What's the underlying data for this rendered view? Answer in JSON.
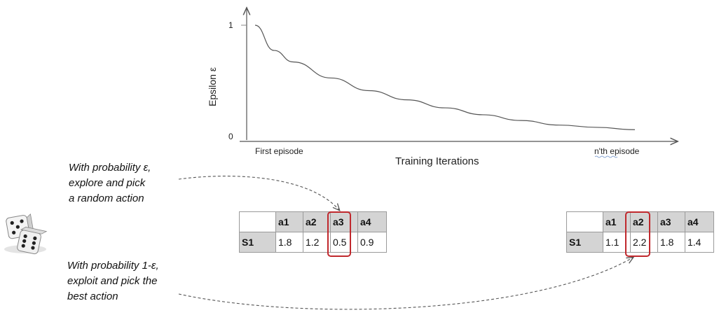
{
  "chart_data": {
    "type": "line",
    "title": "",
    "xlabel": "Training Iterations",
    "ylabel": "Epsilon ε",
    "y_ticks": [
      "1",
      "0"
    ],
    "x_tick_labels": [
      "First episode",
      "n'th episode"
    ],
    "ylim": [
      0,
      1
    ],
    "series": [
      {
        "curve": "decay",
        "x": [
          0,
          0.05,
          0.1,
          0.2,
          0.3,
          0.4,
          0.5,
          0.6,
          0.7,
          0.8,
          0.9,
          1.0
        ],
        "y": [
          1.0,
          0.78,
          0.68,
          0.54,
          0.43,
          0.35,
          0.28,
          0.22,
          0.17,
          0.13,
          0.11,
          0.09
        ]
      }
    ]
  },
  "notes": {
    "explore": "With probability ε,\nexplore and pick\na random action",
    "exploit": "With probability 1-ε,\nexploit and pick the\nbest action"
  },
  "table_explore": {
    "headers": [
      "a1",
      "a2",
      "a3",
      "a4"
    ],
    "row_label": "S1",
    "values": [
      "1.8",
      "1.2",
      "0.5",
      "0.9"
    ],
    "highlighted_action": "a3"
  },
  "table_exploit": {
    "headers": [
      "a1",
      "a2",
      "a3",
      "a4"
    ],
    "row_label": "S1",
    "values": [
      "1.1",
      "2.2",
      "1.8",
      "1.4"
    ],
    "highlighted_action": "a2"
  },
  "colors": {
    "highlight": "#c0282d",
    "header_fill": "#d4d4d4",
    "curve": "#555555",
    "axis": "#555555"
  },
  "icons": {
    "dice": "dice-icon"
  }
}
